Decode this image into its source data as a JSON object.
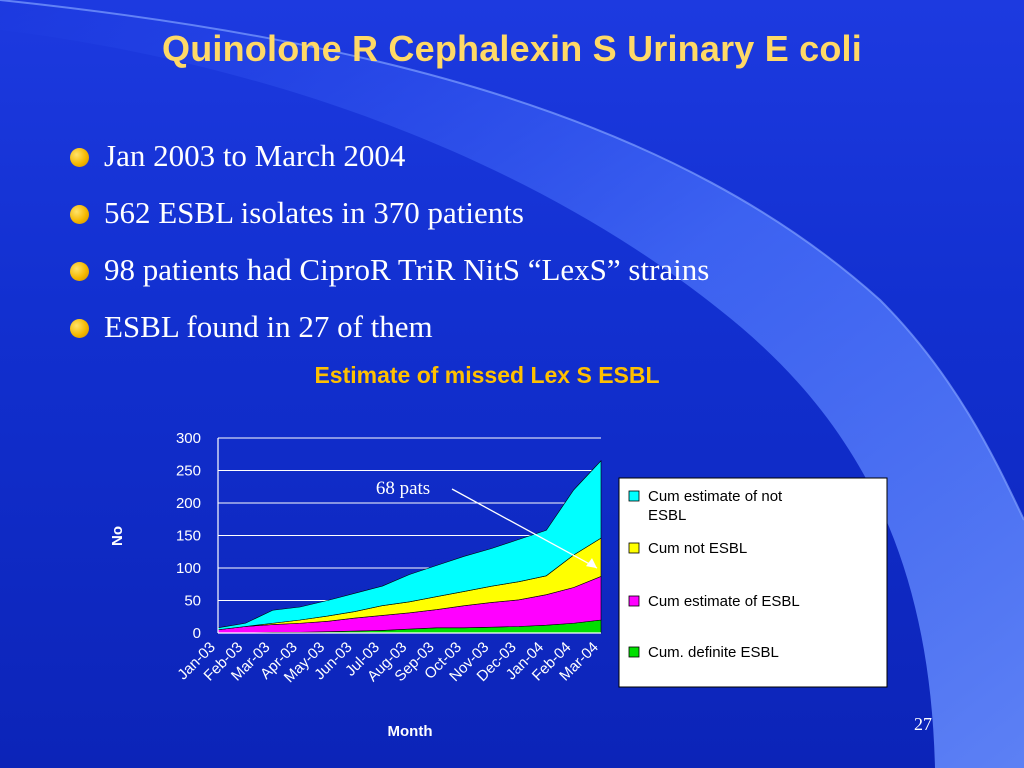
{
  "slide": {
    "title": "Quinolone R Cephalexin S Urinary E coli",
    "bullets": [
      "Jan 2003 to March 2004",
      "562 ESBL isolates in 370 patients",
      "98 patients had CiproR TriR NitS  “LexS” strains",
      "ESBL found in 27 of them"
    ],
    "page_number": "27"
  },
  "colors": {
    "title": "#ffd966",
    "chart_title": "#ffc000",
    "cum_estimate_not_esbl": "#00ffff",
    "cum_not_esbl": "#ffff00",
    "cum_estimate_esbl": "#ff00ff",
    "cum_definite_esbl": "#00e000"
  },
  "chart_data": {
    "type": "area",
    "title": "Estimate of missed Lex S ESBL",
    "xlabel": "Month",
    "ylabel": "No",
    "ylim": [
      0,
      300
    ],
    "yticks": [
      0,
      50,
      100,
      150,
      200,
      250,
      300
    ],
    "grid": true,
    "legend_position": "right",
    "stacked": true,
    "categories": [
      "Jan-03",
      "Feb-03",
      "Mar-03",
      "Apr-03",
      "May-03",
      "Jun-03",
      "Jul-03",
      "Aug-03",
      "Sep-03",
      "Oct-03",
      "Nov-03",
      "Dec-03",
      "Jan-04",
      "Feb-04",
      "Mar-04"
    ],
    "series": [
      {
        "name": "Cum. definite ESBL",
        "color": "#00e000",
        "values": [
          0,
          0,
          1,
          1,
          2,
          3,
          4,
          6,
          8,
          8,
          9,
          10,
          12,
          15,
          20
        ]
      },
      {
        "name": "Cum estimate of ESBL",
        "color": "#ff00ff",
        "values": [
          5,
          10,
          12,
          14,
          16,
          20,
          23,
          25,
          28,
          34,
          38,
          41,
          47,
          55,
          67
        ]
      },
      {
        "name": "Cum not ESBL",
        "color": "#ffff00",
        "values": [
          0,
          0,
          2,
          5,
          8,
          10,
          15,
          17,
          20,
          22,
          25,
          28,
          29,
          50,
          59
        ]
      },
      {
        "name": "Cum estimate of not ESBL",
        "color": "#00ffff",
        "values": [
          3,
          5,
          20,
          20,
          24,
          28,
          30,
          42,
          48,
          54,
          58,
          65,
          70,
          100,
          119
        ]
      }
    ],
    "annotation": {
      "text": "68 pats",
      "points_to": "Mar-04"
    }
  }
}
